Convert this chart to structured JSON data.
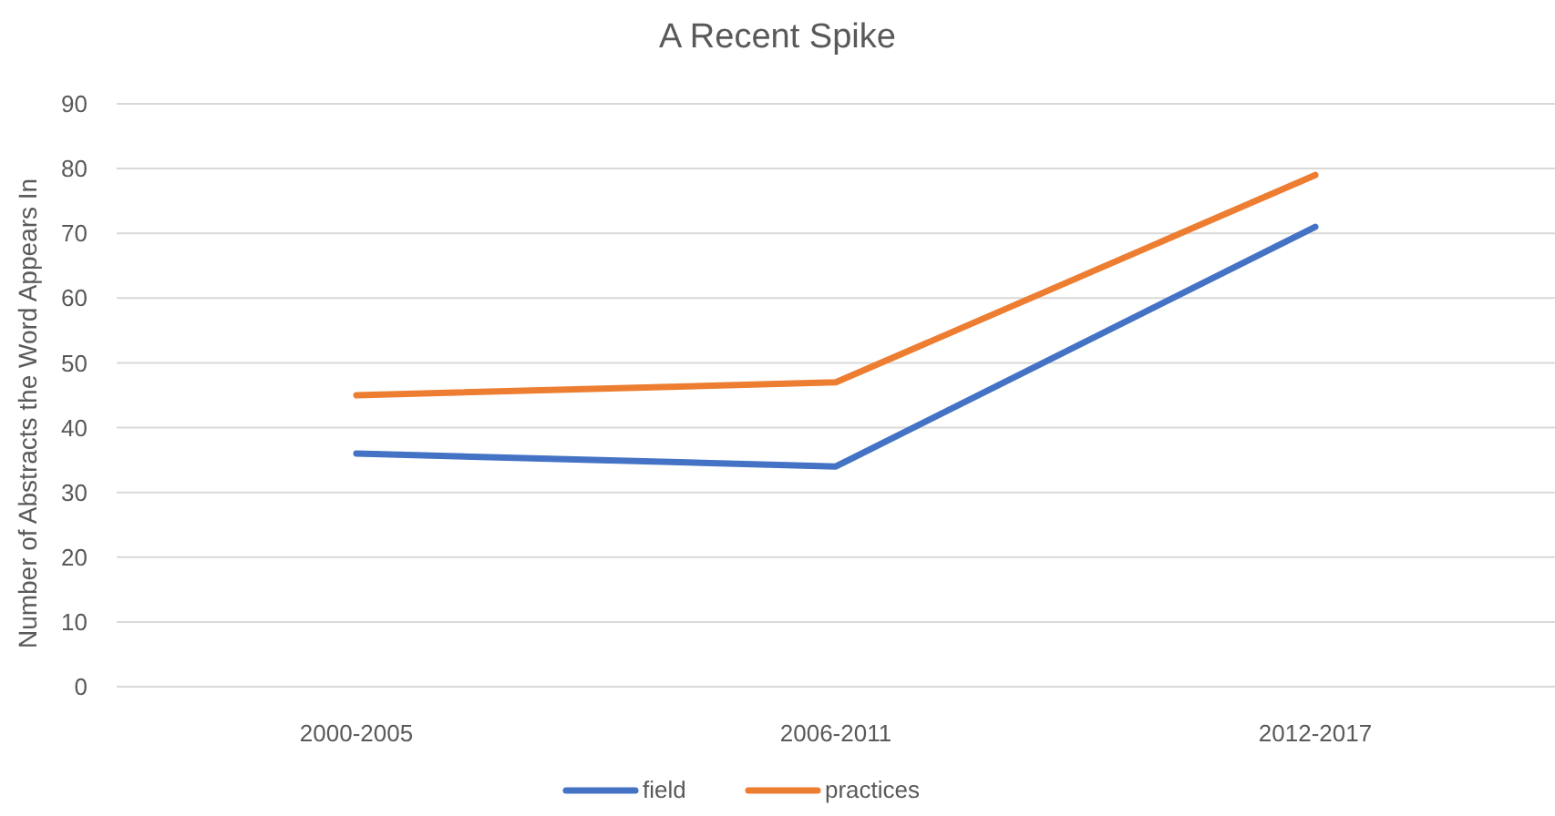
{
  "chart_data": {
    "type": "line",
    "title": "A Recent Spike",
    "ylabel": "Number of Abstracts the Word Appears In",
    "categories": [
      "2000-2005",
      "2006-2011",
      "2012-2017"
    ],
    "series": [
      {
        "name": "field",
        "color": "#4472c4",
        "values": [
          36,
          34,
          71
        ]
      },
      {
        "name": "practices",
        "color": "#ed7d31",
        "values": [
          45,
          47,
          79
        ]
      }
    ],
    "ylim": [
      0,
      90
    ],
    "yticks": [
      0,
      10,
      20,
      30,
      40,
      50,
      60,
      70,
      80,
      90
    ],
    "grid": "y",
    "legend": "bottom",
    "marker": "none",
    "line_style": "solid"
  }
}
